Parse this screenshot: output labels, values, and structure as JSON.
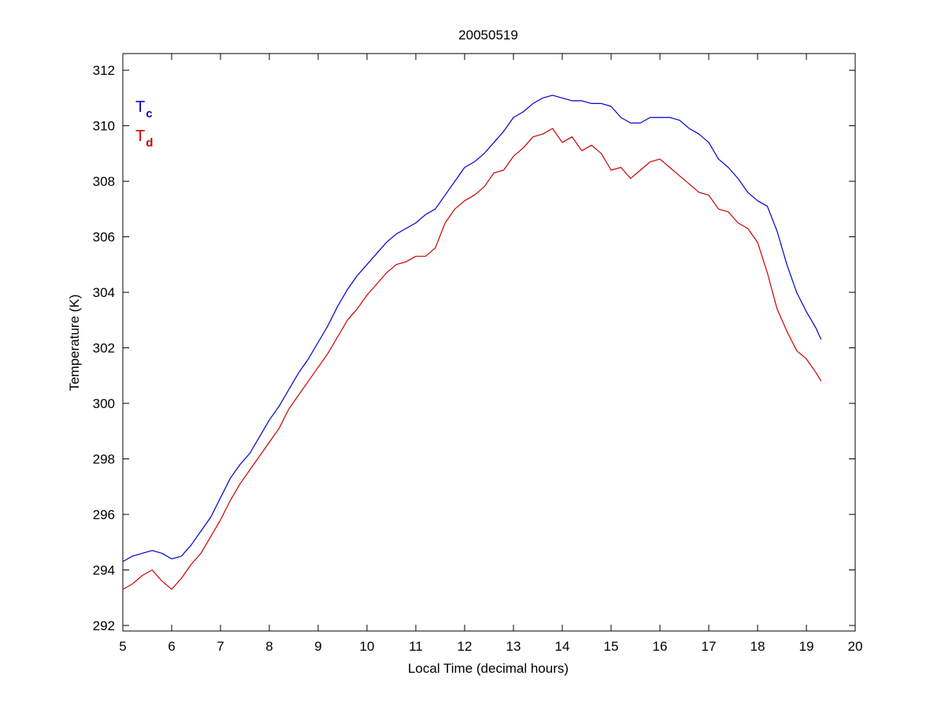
{
  "chart_data": {
    "type": "line",
    "title": "20050519",
    "xlabel": "Local Time (decimal hours)",
    "ylabel": "Temperature (K)",
    "xlim": [
      5,
      20
    ],
    "ylim": [
      291.8,
      312.6
    ],
    "xticks": [
      5,
      6,
      7,
      8,
      9,
      10,
      11,
      12,
      13,
      14,
      15,
      16,
      17,
      18,
      19,
      20
    ],
    "yticks": [
      292,
      294,
      296,
      298,
      300,
      302,
      304,
      306,
      308,
      310,
      312
    ],
    "grid": false,
    "legend_position": "top-left",
    "series": [
      {
        "name": "T",
        "subscript": "c",
        "color": "#0000cc",
        "x": [
          5.0,
          5.2,
          5.4,
          5.6,
          5.8,
          6.0,
          6.2,
          6.4,
          6.6,
          6.8,
          7.0,
          7.2,
          7.4,
          7.6,
          7.8,
          8.0,
          8.2,
          8.4,
          8.6,
          8.8,
          9.0,
          9.2,
          9.4,
          9.6,
          9.8,
          10.0,
          10.2,
          10.4,
          10.6,
          10.8,
          11.0,
          11.2,
          11.4,
          11.6,
          11.8,
          12.0,
          12.2,
          12.4,
          12.6,
          12.8,
          13.0,
          13.2,
          13.4,
          13.6,
          13.8,
          14.0,
          14.2,
          14.4,
          14.6,
          14.8,
          15.0,
          15.2,
          15.4,
          15.6,
          15.8,
          16.0,
          16.2,
          16.4,
          16.6,
          16.8,
          17.0,
          17.2,
          17.4,
          17.6,
          17.8,
          18.0,
          18.2,
          18.4,
          18.6,
          18.8,
          19.0,
          19.2,
          19.3
        ],
        "y": [
          294.3,
          294.5,
          294.6,
          294.7,
          294.6,
          294.4,
          294.5,
          294.9,
          295.4,
          295.9,
          296.6,
          297.3,
          297.8,
          298.2,
          298.8,
          299.4,
          299.9,
          300.5,
          301.1,
          301.6,
          302.2,
          302.8,
          303.5,
          304.1,
          304.6,
          305.0,
          305.4,
          305.8,
          306.1,
          306.3,
          306.5,
          306.8,
          307.0,
          307.5,
          308.0,
          308.5,
          308.7,
          309.0,
          309.4,
          309.8,
          310.3,
          310.5,
          310.8,
          311.0,
          311.1,
          311.0,
          310.9,
          310.9,
          310.8,
          310.8,
          310.7,
          310.3,
          310.1,
          310.1,
          310.3,
          310.3,
          310.3,
          310.2,
          309.9,
          309.7,
          309.4,
          308.8,
          308.5,
          308.1,
          307.6,
          307.3,
          307.1,
          306.2,
          305.0,
          304.0,
          303.3,
          302.7,
          302.3
        ]
      },
      {
        "name": "T",
        "subscript": "d",
        "color": "#cc0000",
        "x": [
          5.0,
          5.2,
          5.4,
          5.6,
          5.8,
          6.0,
          6.2,
          6.4,
          6.6,
          6.8,
          7.0,
          7.2,
          7.4,
          7.6,
          7.8,
          8.0,
          8.2,
          8.4,
          8.6,
          8.8,
          9.0,
          9.2,
          9.4,
          9.6,
          9.8,
          10.0,
          10.2,
          10.4,
          10.6,
          10.8,
          11.0,
          11.2,
          11.4,
          11.6,
          11.8,
          12.0,
          12.2,
          12.4,
          12.6,
          12.8,
          13.0,
          13.2,
          13.4,
          13.6,
          13.8,
          14.0,
          14.2,
          14.4,
          14.6,
          14.8,
          15.0,
          15.2,
          15.4,
          15.6,
          15.8,
          16.0,
          16.2,
          16.4,
          16.6,
          16.8,
          17.0,
          17.2,
          17.4,
          17.6,
          17.8,
          18.0,
          18.2,
          18.4,
          18.6,
          18.8,
          19.0,
          19.2,
          19.3
        ],
        "y": [
          293.3,
          293.5,
          293.8,
          294.0,
          293.6,
          293.3,
          293.7,
          294.2,
          294.6,
          295.2,
          295.8,
          296.5,
          297.1,
          297.6,
          298.1,
          298.6,
          299.1,
          299.8,
          300.3,
          300.8,
          301.3,
          301.8,
          302.4,
          303.0,
          303.4,
          303.9,
          304.3,
          304.7,
          305.0,
          305.1,
          305.3,
          305.3,
          305.6,
          306.5,
          307.0,
          307.3,
          307.5,
          307.8,
          308.3,
          308.4,
          308.9,
          309.2,
          309.6,
          309.7,
          309.9,
          309.4,
          309.6,
          309.1,
          309.3,
          309.0,
          308.4,
          308.5,
          308.1,
          308.4,
          308.7,
          308.8,
          308.5,
          308.2,
          307.9,
          307.6,
          307.5,
          307.0,
          306.9,
          306.5,
          306.3,
          305.8,
          304.7,
          303.4,
          302.6,
          301.9,
          301.6,
          301.1,
          300.8
        ]
      }
    ]
  }
}
